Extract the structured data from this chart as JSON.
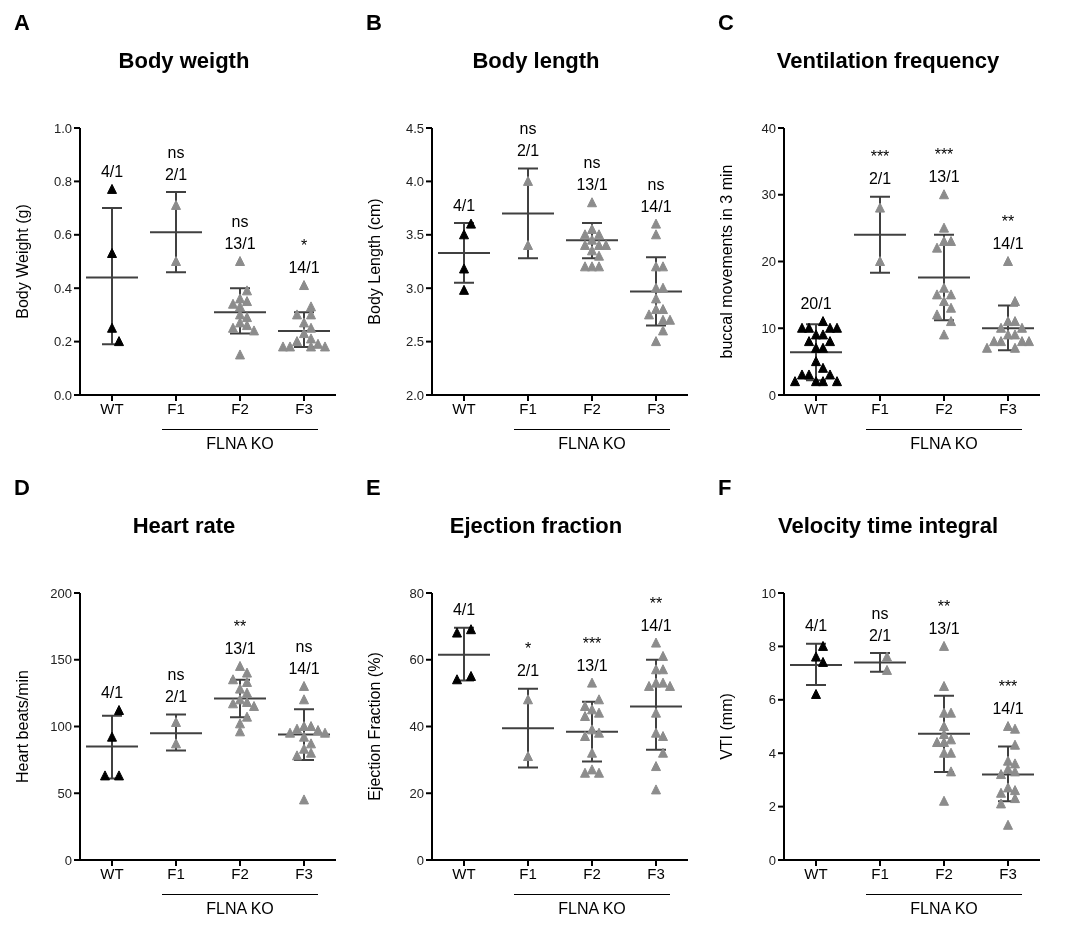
{
  "chart_data": [
    {
      "type": "scatter",
      "title": "Body weigth",
      "ylabel": "Body Weight (g)",
      "xlabel": "FLNA KO",
      "categories": [
        "WT",
        "F1",
        "F2",
        "F3"
      ],
      "ylim": [
        0,
        1
      ],
      "yticks": [
        {
          "value": 0,
          "label": "0.0"
        },
        {
          "value": 0.2,
          "label": "0.2"
        },
        {
          "value": 0.4,
          "label": "0.4"
        },
        {
          "value": 0.6,
          "label": "0.6"
        },
        {
          "value": 0.8,
          "label": "0.8"
        },
        {
          "value": 1,
          "label": "1.0"
        }
      ],
      "marker": "triangle",
      "series": [
        {
          "color": "#000000",
          "x": [
            "WT",
            "WT",
            "WT",
            "WT"
          ],
          "values": [
            0.77,
            0.53,
            0.25,
            0.2
          ],
          "value_labels": [
            "4/1",
            null,
            null,
            null
          ]
        },
        {
          "color": "#8c8c8c",
          "x": [
            "F1",
            "F1",
            "F2",
            "F2",
            "F2",
            "F2",
            "F2",
            "F2",
            "F2",
            "F2",
            "F2",
            "F2",
            "F2",
            "F2",
            "F2",
            "F3",
            "F3",
            "F3",
            "F3",
            "F3",
            "F3",
            "F3",
            "F3",
            "F3",
            "F3",
            "F3",
            "F3",
            "F3",
            "F3"
          ],
          "values": [
            0.71,
            0.5,
            0.5,
            0.39,
            0.36,
            0.35,
            0.34,
            0.33,
            0.3,
            0.29,
            0.27,
            0.26,
            0.25,
            0.24,
            0.15,
            0.41,
            0.33,
            0.3,
            0.3,
            0.27,
            0.25,
            0.23,
            0.21,
            0.2,
            0.19,
            0.18,
            0.18,
            0.18,
            0.18
          ],
          "value_labels": [
            "2/1",
            null,
            "13/1",
            null,
            null,
            null,
            null,
            null,
            null,
            null,
            null,
            null,
            null,
            null,
            null,
            "14/1",
            null,
            null,
            null,
            null,
            null,
            null,
            null,
            null,
            null,
            null,
            null,
            null,
            null
          ]
        },
        {
          "type": "box",
          "color": "#404040",
          "boxes": [
            {
              "low": 0.19,
              "q1": 0.44,
              "median": 0.44,
              "q3": 0.44,
              "high": 0.7
            },
            {
              "low": 0.46,
              "q1": 0.61,
              "median": 0.61,
              "q3": 0.61,
              "high": 0.76
            },
            {
              "low": 0.23,
              "q1": 0.31,
              "median": 0.31,
              "q3": 0.31,
              "high": 0.4
            },
            {
              "low": 0.18,
              "q1": 0.24,
              "median": 0.24,
              "q3": 0.24,
              "high": 0.31
            }
          ],
          "value_labels": [
            null,
            "ns",
            "ns",
            "*"
          ]
        }
      ],
      "annotations": [
        "A"
      ]
    },
    {
      "type": "scatter",
      "title": "Body length",
      "ylabel": "Body Length (cm)",
      "xlabel": "FLNA KO",
      "categories": [
        "WT",
        "F1",
        "F2",
        "F3"
      ],
      "ylim": [
        2,
        4.5
      ],
      "yticks": [
        {
          "value": 2,
          "label": "2.0"
        },
        {
          "value": 2.5,
          "label": "2.5"
        },
        {
          "value": 3,
          "label": "3.0"
        },
        {
          "value": 3.5,
          "label": "3.5"
        },
        {
          "value": 4,
          "label": "4.0"
        },
        {
          "value": 4.5,
          "label": "4.5"
        }
      ],
      "marker": "triangle",
      "series": [
        {
          "color": "#000000",
          "x": [
            "WT",
            "WT",
            "WT",
            "WT"
          ],
          "values": [
            3.6,
            3.5,
            3.18,
            2.98
          ],
          "value_labels": [
            "4/1",
            null,
            null,
            null
          ]
        },
        {
          "color": "#8c8c8c",
          "x": [
            "F1",
            "F1",
            "F2",
            "F2",
            "F2",
            "F2",
            "F2",
            "F2",
            "F2",
            "F2",
            "F2",
            "F2",
            "F2",
            "F2",
            "F2",
            "F3",
            "F3",
            "F3",
            "F3",
            "F3",
            "F3",
            "F3",
            "F3",
            "F3",
            "F3",
            "F3",
            "F3",
            "F3",
            "F3"
          ],
          "values": [
            4.0,
            3.4,
            3.8,
            3.55,
            3.5,
            3.5,
            3.45,
            3.4,
            3.4,
            3.4,
            3.35,
            3.3,
            3.2,
            3.2,
            3.2,
            3.6,
            3.5,
            3.2,
            3.2,
            3.0,
            3.0,
            2.9,
            2.8,
            2.8,
            2.75,
            2.7,
            2.7,
            2.6,
            2.5
          ],
          "value_labels": [
            "2/1",
            null,
            "13/1",
            null,
            null,
            null,
            null,
            null,
            null,
            null,
            null,
            null,
            null,
            null,
            null,
            "14/1",
            null,
            null,
            null,
            null,
            null,
            null,
            null,
            null,
            null,
            null,
            null,
            null,
            null
          ]
        },
        {
          "type": "box",
          "color": "#404040",
          "boxes": [
            {
              "low": 3.05,
              "q1": 3.33,
              "median": 3.33,
              "q3": 3.33,
              "high": 3.61
            },
            {
              "low": 3.28,
              "q1": 3.7,
              "median": 3.7,
              "q3": 3.7,
              "high": 4.12
            },
            {
              "low": 3.28,
              "q1": 3.45,
              "median": 3.45,
              "q3": 3.45,
              "high": 3.61
            },
            {
              "low": 2.65,
              "q1": 2.97,
              "median": 2.97,
              "q3": 2.97,
              "high": 3.29
            }
          ],
          "value_labels": [
            null,
            "ns",
            "ns",
            "ns"
          ]
        }
      ],
      "annotations": [
        "B"
      ]
    },
    {
      "type": "scatter",
      "title": "Ventilation frequency",
      "ylabel": "buccal movements in 3 min",
      "xlabel": "FLNA KO",
      "categories": [
        "WT",
        "F1",
        "F2",
        "F3"
      ],
      "ylim": [
        0,
        40
      ],
      "yticks": [
        0,
        10,
        20,
        30,
        40
      ],
      "marker": "triangle",
      "series": [
        {
          "color": "#000000",
          "x": [
            "WT",
            "WT",
            "WT",
            "WT",
            "WT",
            "WT",
            "WT",
            "WT",
            "WT",
            "WT",
            "WT",
            "WT",
            "WT",
            "WT",
            "WT",
            "WT",
            "WT",
            "WT",
            "WT",
            "WT"
          ],
          "values": [
            11,
            10,
            10,
            10,
            10,
            9,
            9,
            8,
            8,
            7,
            7,
            5,
            4,
            3,
            3,
            3,
            2,
            2,
            2,
            2
          ],
          "value_labels": [
            "20/1",
            null,
            null,
            null,
            null,
            null,
            null,
            null,
            null,
            null,
            null,
            null,
            null,
            null,
            null,
            null,
            null,
            null,
            null,
            null
          ]
        },
        {
          "color": "#8c8c8c",
          "x": [
            "F1",
            "F1",
            "F2",
            "F2",
            "F2",
            "F2",
            "F2",
            "F2",
            "F2",
            "F2",
            "F2",
            "F2",
            "F2",
            "F2",
            "F2",
            "F3",
            "F3",
            "F3",
            "F3",
            "F3",
            "F3",
            "F3",
            "F3",
            "F3",
            "F3",
            "F3",
            "F3",
            "F3",
            "F3"
          ],
          "values": [
            28,
            20,
            30,
            25,
            23,
            23,
            22,
            16,
            15,
            15,
            14,
            13,
            12,
            11,
            9,
            20,
            14,
            11,
            11,
            10,
            10,
            9,
            9,
            8,
            8,
            8,
            8,
            7,
            7
          ],
          "value_labels": [
            "2/1",
            null,
            "13/1",
            null,
            null,
            null,
            null,
            null,
            null,
            null,
            null,
            null,
            null,
            null,
            null,
            "14/1",
            null,
            null,
            null,
            null,
            null,
            null,
            null,
            null,
            null,
            null,
            null,
            null,
            null
          ]
        },
        {
          "type": "box",
          "color": "#404040",
          "boxes": [
            {
              "low": 2.2,
              "q1": 6.4,
              "median": 6.4,
              "q3": 6.4,
              "high": 10.6
            },
            {
              "low": 18.3,
              "q1": 24,
              "median": 24,
              "q3": 24,
              "high": 29.7
            },
            {
              "low": 11.2,
              "q1": 17.6,
              "median": 17.6,
              "q3": 17.6,
              "high": 24
            },
            {
              "low": 6.7,
              "q1": 10,
              "median": 10,
              "q3": 10,
              "high": 13.4
            }
          ],
          "value_labels": [
            null,
            "***",
            "***",
            "**"
          ]
        }
      ],
      "annotations": [
        "C"
      ]
    },
    {
      "type": "scatter",
      "title": "Heart rate",
      "ylabel": "Heart beats/min",
      "xlabel": "FLNA KO",
      "categories": [
        "WT",
        "F1",
        "F2",
        "F3"
      ],
      "ylim": [
        0,
        200
      ],
      "yticks": [
        0,
        50,
        100,
        150,
        200
      ],
      "marker": "triangle",
      "series": [
        {
          "color": "#000000",
          "x": [
            "WT",
            "WT",
            "WT",
            "WT"
          ],
          "values": [
            112,
            92,
            63,
            63
          ],
          "value_labels": [
            "4/1",
            null,
            null,
            null
          ]
        },
        {
          "color": "#8c8c8c",
          "x": [
            "F1",
            "F1",
            "F2",
            "F2",
            "F2",
            "F2",
            "F2",
            "F2",
            "F2",
            "F2",
            "F2",
            "F2",
            "F2",
            "F2",
            "F2",
            "F3",
            "F3",
            "F3",
            "F3",
            "F3",
            "F3",
            "F3",
            "F3",
            "F3",
            "F3",
            "F3",
            "F3",
            "F3",
            "F3"
          ],
          "values": [
            103,
            87,
            145,
            140,
            135,
            133,
            128,
            125,
            120,
            118,
            117,
            115,
            107,
            102,
            96,
            130,
            120,
            100,
            100,
            98,
            97,
            95,
            95,
            92,
            87,
            83,
            80,
            78,
            45
          ],
          "value_labels": [
            "2/1",
            null,
            "13/1",
            null,
            null,
            null,
            null,
            null,
            null,
            null,
            null,
            null,
            null,
            null,
            null,
            "14/1",
            null,
            null,
            null,
            null,
            null,
            null,
            null,
            null,
            null,
            null,
            null,
            null,
            null
          ]
        },
        {
          "type": "box",
          "color": "#404040",
          "boxes": [
            {
              "low": 61,
              "q1": 85,
              "median": 85,
              "q3": 85,
              "high": 108
            },
            {
              "low": 82,
              "q1": 95,
              "median": 95,
              "q3": 95,
              "high": 109
            },
            {
              "low": 107,
              "q1": 121,
              "median": 121,
              "q3": 121,
              "high": 135
            },
            {
              "low": 75,
              "q1": 94,
              "median": 94,
              "q3": 94,
              "high": 113
            }
          ],
          "value_labels": [
            null,
            "ns",
            "**",
            "ns"
          ]
        }
      ],
      "annotations": [
        "D"
      ]
    },
    {
      "type": "scatter",
      "title": "Ejection fraction",
      "ylabel": "Ejection Fraction (%)",
      "xlabel": "FLNA KO",
      "categories": [
        "WT",
        "F1",
        "F2",
        "F3"
      ],
      "ylim": [
        0,
        80
      ],
      "yticks": [
        0,
        20,
        40,
        60,
        80
      ],
      "marker": "triangle",
      "series": [
        {
          "color": "#000000",
          "x": [
            "WT",
            "WT",
            "WT",
            "WT"
          ],
          "values": [
            69,
            68,
            55,
            54
          ],
          "value_labels": [
            "4/1",
            null,
            null,
            null
          ]
        },
        {
          "color": "#8c8c8c",
          "x": [
            "F1",
            "F1",
            "F2",
            "F2",
            "F2",
            "F2",
            "F2",
            "F2",
            "F2",
            "F2",
            "F2",
            "F2",
            "F2",
            "F2",
            "F2",
            "F3",
            "F3",
            "F3",
            "F3",
            "F3",
            "F3",
            "F3",
            "F3",
            "F3",
            "F3",
            "F3",
            "F3",
            "F3",
            "F3"
          ],
          "values": [
            48,
            31,
            53,
            48,
            46,
            45,
            44,
            43,
            39,
            38,
            37,
            32,
            27,
            26,
            26,
            65,
            61,
            57,
            57,
            53,
            53,
            52,
            52,
            44,
            38,
            37,
            32,
            28,
            21
          ],
          "value_labels": [
            "2/1",
            null,
            "13/1",
            null,
            null,
            null,
            null,
            null,
            null,
            null,
            null,
            null,
            null,
            null,
            null,
            "14/1",
            null,
            null,
            null,
            null,
            null,
            null,
            null,
            null,
            null,
            null,
            null,
            null,
            null
          ]
        },
        {
          "type": "box",
          "color": "#404040",
          "boxes": [
            {
              "low": 53.8,
              "q1": 61.5,
              "median": 61.5,
              "q3": 61.5,
              "high": 69.6
            },
            {
              "low": 27.7,
              "q1": 39.5,
              "median": 39.5,
              "q3": 39.5,
              "high": 51.3
            },
            {
              "low": 29.5,
              "q1": 38.4,
              "median": 38.4,
              "q3": 38.4,
              "high": 47.4
            },
            {
              "low": 33,
              "q1": 46,
              "median": 46,
              "q3": 46,
              "high": 60
            }
          ],
          "value_labels": [
            null,
            "*",
            "***",
            "**"
          ]
        }
      ],
      "annotations": [
        "E"
      ]
    },
    {
      "type": "scatter",
      "title": "Velocity time integral",
      "ylabel": "VTI (mm)",
      "xlabel": "FLNA KO",
      "categories": [
        "WT",
        "F1",
        "F2",
        "F3"
      ],
      "ylim": [
        0,
        10
      ],
      "yticks": [
        0,
        2,
        4,
        6,
        8,
        10
      ],
      "marker": "triangle",
      "series": [
        {
          "color": "#000000",
          "x": [
            "WT",
            "WT",
            "WT",
            "WT"
          ],
          "values": [
            8.0,
            7.6,
            7.4,
            6.2
          ],
          "value_labels": [
            "4/1",
            null,
            null,
            null
          ]
        },
        {
          "color": "#8c8c8c",
          "x": [
            "F1",
            "F1",
            "F2",
            "F2",
            "F2",
            "F2",
            "F2",
            "F2",
            "F2",
            "F2",
            "F2",
            "F2",
            "F2",
            "F2",
            "F2",
            "F3",
            "F3",
            "F3",
            "F3",
            "F3",
            "F3",
            "F3",
            "F3",
            "F3",
            "F3",
            "F3",
            "F3",
            "F3",
            "F3"
          ],
          "values": [
            7.6,
            7.1,
            8.0,
            6.5,
            5.5,
            5.5,
            5.0,
            4.7,
            4.5,
            4.4,
            4.4,
            4.0,
            4.0,
            3.3,
            2.2,
            5.0,
            4.9,
            4.3,
            3.7,
            3.6,
            3.4,
            3.3,
            3.2,
            2.7,
            2.6,
            2.5,
            2.3,
            2.1,
            1.3
          ],
          "value_labels": [
            "2/1",
            null,
            "13/1",
            null,
            null,
            null,
            null,
            null,
            null,
            null,
            null,
            null,
            null,
            null,
            null,
            "14/1",
            null,
            null,
            null,
            null,
            null,
            null,
            null,
            null,
            null,
            null,
            null,
            null,
            null
          ]
        },
        {
          "type": "box",
          "color": "#404040",
          "boxes": [
            {
              "low": 6.55,
              "q1": 7.3,
              "median": 7.3,
              "q3": 7.3,
              "high": 8.1
            },
            {
              "low": 7.05,
              "q1": 7.4,
              "median": 7.4,
              "q3": 7.4,
              "high": 7.75
            },
            {
              "low": 3.3,
              "q1": 4.73,
              "median": 4.73,
              "q3": 4.73,
              "high": 6.15
            },
            {
              "low": 2.2,
              "q1": 3.2,
              "median": 3.2,
              "q3": 3.2,
              "high": 4.25
            }
          ],
          "value_labels": [
            null,
            "ns",
            "**",
            "***"
          ]
        }
      ],
      "annotations": [
        "F"
      ]
    }
  ]
}
